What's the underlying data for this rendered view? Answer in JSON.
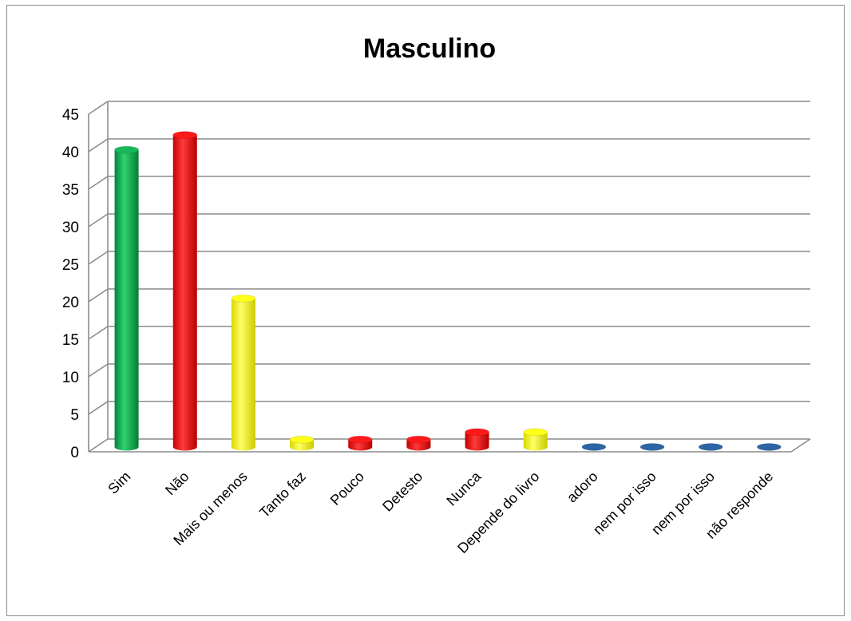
{
  "chart_data": {
    "type": "bar",
    "title": "Masculino",
    "xlabel": "",
    "ylabel": "",
    "ylim": [
      0,
      45
    ],
    "yticks": [
      "0",
      "5",
      "10",
      "15",
      "20",
      "25",
      "30",
      "35",
      "40",
      "45"
    ],
    "grid": true,
    "legend": "none",
    "categories": [
      "Sim",
      "Não",
      "Mais ou menos",
      "Tanto faz",
      "Pouco",
      "Detesto",
      "Nunca",
      "Depende do livro",
      "adoro",
      "nem por isso",
      "nem por isso",
      "não responde"
    ],
    "values": [
      40,
      42,
      20,
      1,
      1,
      1,
      2,
      2,
      0,
      0,
      0,
      0
    ],
    "colors": [
      "#0aa84f",
      "#ff0000",
      "#ffff00",
      "#ffff00",
      "#ff0000",
      "#ff0000",
      "#ff0000",
      "#ffff00",
      "#1f5fa8",
      "#1f5fa8",
      "#1f5fa8",
      "#1f5fa8"
    ]
  }
}
